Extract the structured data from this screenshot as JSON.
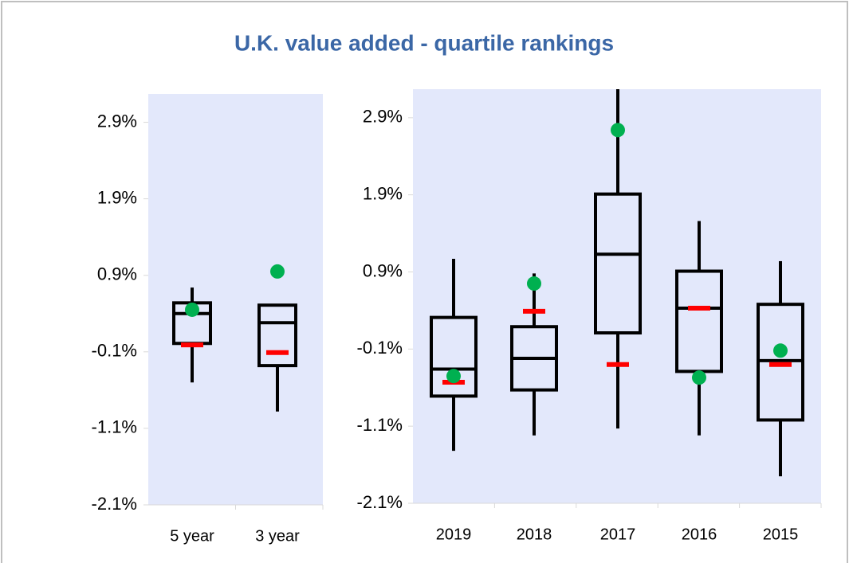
{
  "title": "U.K. value added - quartile rankings",
  "chart_data": [
    {
      "type": "box",
      "ylim": [
        -2.1,
        3.27
      ],
      "yticks": [
        {
          "value": -2.1,
          "label": "-2.1%"
        },
        {
          "value": -1.1,
          "label": "-1.1%"
        },
        {
          "value": -0.1,
          "label": "-0.1%"
        },
        {
          "value": 0.9,
          "label": "0.9%"
        },
        {
          "value": 1.9,
          "label": "1.9%"
        },
        {
          "value": 2.9,
          "label": "2.9%"
        }
      ],
      "background": "#e3e8fb",
      "box_color": "#000000",
      "dot_color": "#00b050",
      "dash_color": "#ff0000",
      "categories": [
        "5 year",
        "3 year"
      ],
      "low": [
        -0.5,
        -0.88
      ],
      "q1": [
        0.01,
        -0.28
      ],
      "median": [
        0.4,
        0.28
      ],
      "q3": [
        0.54,
        0.51
      ],
      "high": [
        0.74,
        0.51
      ],
      "dot": [
        0.45,
        0.95
      ],
      "dash": [
        -0.01,
        -0.11
      ]
    },
    {
      "type": "box",
      "ylim": [
        -2.1,
        3.27
      ],
      "yticks": [
        {
          "value": -2.1,
          "label": "-2.1%"
        },
        {
          "value": -1.1,
          "label": "-1.1%"
        },
        {
          "value": -0.1,
          "label": "-0.1%"
        },
        {
          "value": 0.9,
          "label": "0.9%"
        },
        {
          "value": 1.9,
          "label": "1.9%"
        },
        {
          "value": 2.9,
          "label": "2.9%"
        }
      ],
      "background": "#e3e8fb",
      "box_color": "#000000",
      "dot_color": "#00b050",
      "dash_color": "#ff0000",
      "categories": [
        "2019",
        "2018",
        "2017",
        "2016",
        "2015"
      ],
      "low": [
        -1.42,
        -1.22,
        -1.13,
        -1.22,
        -1.75
      ],
      "q1": [
        -0.71,
        -0.63,
        0.11,
        -0.39,
        -1.02
      ],
      "median": [
        -0.36,
        -0.22,
        1.13,
        0.43,
        -0.25
      ],
      "q3": [
        0.31,
        0.19,
        1.91,
        0.91,
        0.48
      ],
      "high": [
        1.07,
        0.88,
        3.4,
        1.56,
        1.04
      ],
      "dot": [
        -0.45,
        0.75,
        2.74,
        -0.47,
        -0.12
      ],
      "dash": [
        -0.53,
        0.39,
        -0.3,
        0.43,
        -0.3
      ]
    }
  ]
}
